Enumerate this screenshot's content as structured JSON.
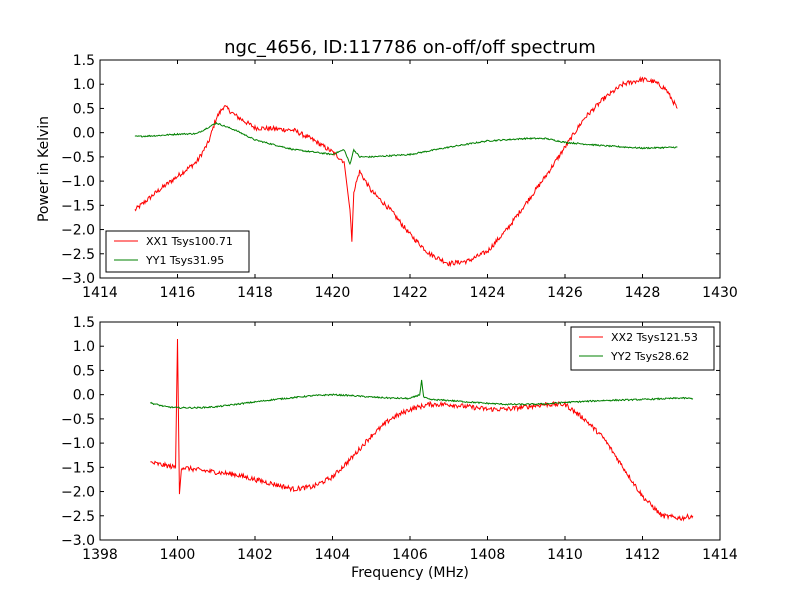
{
  "chart_data": [
    {
      "type": "line",
      "title": "ngc_4656, ID:117786 on-off/off spectrum",
      "xlabel": "",
      "ylabel": "Power in Kelvin",
      "xlim": [
        1414,
        1430
      ],
      "ylim": [
        -3.0,
        1.5
      ],
      "xticks": [
        "1414",
        "1416",
        "1418",
        "1420",
        "1422",
        "1424",
        "1426",
        "1428",
        "1430"
      ],
      "yticks": [
        "1.5",
        "1.0",
        "0.5",
        "0.0",
        "−0.5",
        "−1.0",
        "−1.5",
        "−2.0",
        "−2.5",
        "−3.0"
      ],
      "grid": false,
      "legend_position": "lower-left",
      "series": [
        {
          "name": "XX1 Tsys100.71",
          "color": "#ff0000",
          "x": [
            1414.9,
            1415.2,
            1415.5,
            1416.0,
            1416.5,
            1416.8,
            1417.0,
            1417.2,
            1417.5,
            1418.0,
            1418.5,
            1419.0,
            1419.5,
            1420.0,
            1420.3,
            1420.45,
            1420.5,
            1420.55,
            1420.7,
            1421.0,
            1421.5,
            1422.0,
            1422.5,
            1423.0,
            1423.5,
            1424.0,
            1424.5,
            1425.0,
            1425.5,
            1426.0,
            1426.5,
            1427.0,
            1427.5,
            1428.0,
            1428.3,
            1428.6,
            1428.9
          ],
          "y": [
            -1.6,
            -1.4,
            -1.2,
            -0.9,
            -0.6,
            -0.2,
            0.3,
            0.55,
            0.35,
            0.1,
            0.08,
            0.05,
            -0.15,
            -0.4,
            -0.6,
            -1.6,
            -2.25,
            -1.2,
            -0.8,
            -1.2,
            -1.6,
            -2.1,
            -2.5,
            -2.7,
            -2.65,
            -2.45,
            -2.0,
            -1.45,
            -0.9,
            -0.3,
            0.3,
            0.7,
            1.0,
            1.1,
            1.05,
            0.9,
            0.5
          ]
        },
        {
          "name": "YY1 Tsys31.95",
          "color": "#008000",
          "x": [
            1414.9,
            1415.5,
            1416.0,
            1416.5,
            1417.0,
            1417.5,
            1418.0,
            1418.5,
            1419.0,
            1419.5,
            1420.0,
            1420.3,
            1420.45,
            1420.55,
            1420.7,
            1421.0,
            1422.0,
            1423.0,
            1424.0,
            1425.0,
            1425.5,
            1426.0,
            1427.0,
            1428.0,
            1428.9
          ],
          "y": [
            -0.08,
            -0.06,
            -0.03,
            -0.02,
            0.2,
            0.05,
            -0.15,
            -0.25,
            -0.35,
            -0.4,
            -0.45,
            -0.35,
            -0.65,
            -0.35,
            -0.5,
            -0.5,
            -0.45,
            -0.3,
            -0.17,
            -0.12,
            -0.12,
            -0.2,
            -0.27,
            -0.32,
            -0.3
          ]
        }
      ]
    },
    {
      "type": "line",
      "title": "",
      "xlabel": "Frequency (MHz)",
      "ylabel": "",
      "xlim": [
        1398,
        1414
      ],
      "ylim": [
        -3.0,
        1.5
      ],
      "xticks": [
        "1398",
        "1400",
        "1402",
        "1404",
        "1406",
        "1408",
        "1410",
        "1412",
        "1414"
      ],
      "yticks": [
        "1.5",
        "1.0",
        "0.5",
        "0.0",
        "−0.5",
        "−1.0",
        "−1.5",
        "−2.0",
        "−2.5",
        "−3.0"
      ],
      "grid": false,
      "legend_position": "upper-right",
      "series": [
        {
          "name": "XX2 Tsys121.53",
          "color": "#ff0000",
          "x": [
            1399.3,
            1399.6,
            1399.95,
            1400.0,
            1400.05,
            1400.1,
            1400.5,
            1401.0,
            1401.5,
            1402.0,
            1402.5,
            1403.0,
            1403.5,
            1404.0,
            1404.5,
            1405.0,
            1405.5,
            1406.0,
            1406.5,
            1407.0,
            1407.5,
            1408.0,
            1408.5,
            1409.0,
            1409.5,
            1410.0,
            1410.5,
            1411.0,
            1411.5,
            1412.0,
            1412.5,
            1413.0,
            1413.3
          ],
          "y": [
            -1.4,
            -1.45,
            -1.5,
            1.15,
            -2.05,
            -1.5,
            -1.55,
            -1.6,
            -1.65,
            -1.75,
            -1.85,
            -1.95,
            -1.9,
            -1.7,
            -1.3,
            -0.85,
            -0.5,
            -0.3,
            -0.2,
            -0.2,
            -0.25,
            -0.3,
            -0.3,
            -0.25,
            -0.2,
            -0.2,
            -0.5,
            -0.9,
            -1.5,
            -2.1,
            -2.5,
            -2.55,
            -2.5
          ]
        },
        {
          "name": "YY2 Tsys28.62",
          "color": "#008000",
          "x": [
            1399.3,
            1399.7,
            1400.0,
            1400.5,
            1401.0,
            1401.5,
            1402.0,
            1402.5,
            1403.0,
            1403.5,
            1404.0,
            1404.5,
            1405.0,
            1405.5,
            1406.0,
            1406.25,
            1406.3,
            1406.35,
            1406.5,
            1407.0,
            1407.5,
            1408.0,
            1408.5,
            1409.0,
            1409.5,
            1410.0,
            1411.0,
            1412.0,
            1413.0,
            1413.3
          ],
          "y": [
            -0.17,
            -0.25,
            -0.27,
            -0.27,
            -0.25,
            -0.2,
            -0.15,
            -0.1,
            -0.06,
            -0.02,
            0.0,
            -0.02,
            -0.05,
            -0.07,
            -0.08,
            0.0,
            0.3,
            -0.05,
            -0.1,
            -0.12,
            -0.15,
            -0.18,
            -0.2,
            -0.2,
            -0.19,
            -0.16,
            -0.12,
            -0.1,
            -0.07,
            -0.08
          ]
        }
      ]
    }
  ]
}
